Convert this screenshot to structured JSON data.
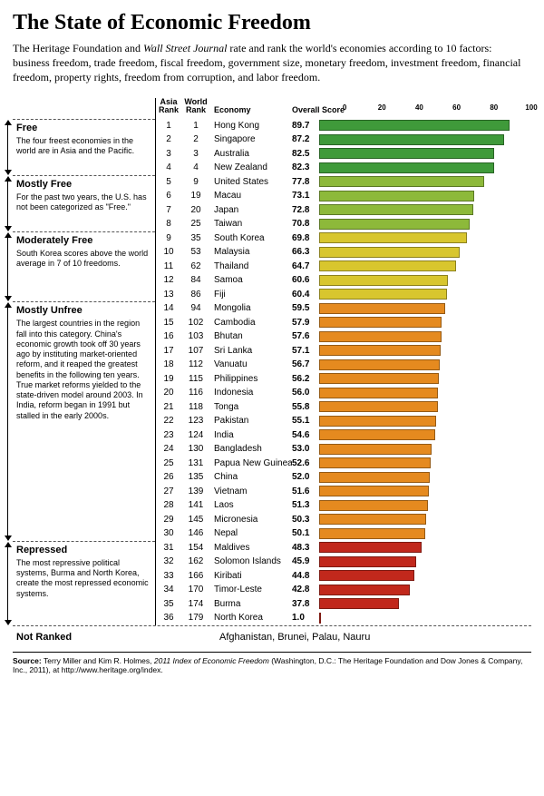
{
  "title": "The State of Economic Freedom",
  "intro_a": "The Heritage Foundation and ",
  "intro_em": "Wall Street Journal",
  "intro_b": " rate and rank the world's economies according to 10 factors: business freedom, trade freedom, fiscal freedom, government size, monetary freedom, investment freedom, financial freedom, property rights, freedom from corruption, and labor freedom.",
  "headers": {
    "asia": "Asia Rank",
    "world": "World Rank",
    "economy": "Economy",
    "score": "Overall Score"
  },
  "axis": {
    "min": 0,
    "max": 100,
    "ticks": [
      0,
      20,
      40,
      60,
      80,
      100
    ]
  },
  "categories": [
    {
      "label": "Free",
      "desc": "The four freest economies in the world are in Asia and the Pacific.",
      "rows": 4
    },
    {
      "label": "Mostly Free",
      "desc": "For the past two years, the U.S. has not been categorized as \"Free.\"",
      "rows": 4
    },
    {
      "label": "Moderately Free",
      "desc": "South Korea scores above the world average in 7 of 10 freedoms.",
      "rows": 5
    },
    {
      "label": "Mostly Unfree",
      "desc": "The largest countries in the region fall into this category. China's economic growth took off 30 years ago by instituting market-oriented reform, and it reaped the greatest benefits in the following ten years. True market reforms yielded to the state-driven model around 2003. In India, reform began in 1991 but stalled in the early 2000s.",
      "rows": 17
    },
    {
      "label": "Repressed",
      "desc": "The most repressive political systems, Burma and North Korea, create the most repressed economic systems.",
      "rows": 6
    }
  ],
  "colors": {
    "free": "#3f9a3a",
    "mostly_free": "#8db93a",
    "moderately_free": "#d8c62e",
    "mostly_unfree": "#e58a1f",
    "repressed": "#c1281c"
  },
  "rows": [
    {
      "asia": 1,
      "world": 1,
      "economy": "Hong Kong",
      "score": 89.7,
      "cat": "free"
    },
    {
      "asia": 2,
      "world": 2,
      "economy": "Singapore",
      "score": 87.2,
      "cat": "free"
    },
    {
      "asia": 3,
      "world": 3,
      "economy": "Australia",
      "score": 82.5,
      "cat": "free"
    },
    {
      "asia": 4,
      "world": 4,
      "economy": "New Zealand",
      "score": 82.3,
      "cat": "free"
    },
    {
      "asia": 5,
      "world": 9,
      "economy": "United States",
      "score": 77.8,
      "cat": "mostly_free"
    },
    {
      "asia": 6,
      "world": 19,
      "economy": "Macau",
      "score": 73.1,
      "cat": "mostly_free"
    },
    {
      "asia": 7,
      "world": 20,
      "economy": "Japan",
      "score": 72.8,
      "cat": "mostly_free"
    },
    {
      "asia": 8,
      "world": 25,
      "economy": "Taiwan",
      "score": 70.8,
      "cat": "mostly_free"
    },
    {
      "asia": 9,
      "world": 35,
      "economy": "South Korea",
      "score": 69.8,
      "cat": "moderately_free"
    },
    {
      "asia": 10,
      "world": 53,
      "economy": "Malaysia",
      "score": 66.3,
      "cat": "moderately_free"
    },
    {
      "asia": 11,
      "world": 62,
      "economy": "Thailand",
      "score": 64.7,
      "cat": "moderately_free"
    },
    {
      "asia": 12,
      "world": 84,
      "economy": "Samoa",
      "score": 60.6,
      "cat": "moderately_free"
    },
    {
      "asia": 13,
      "world": 86,
      "economy": "Fiji",
      "score": 60.4,
      "cat": "moderately_free"
    },
    {
      "asia": 14,
      "world": 94,
      "economy": "Mongolia",
      "score": 59.5,
      "cat": "mostly_unfree"
    },
    {
      "asia": 15,
      "world": 102,
      "economy": "Cambodia",
      "score": 57.9,
      "cat": "mostly_unfree"
    },
    {
      "asia": 16,
      "world": 103,
      "economy": "Bhutan",
      "score": 57.6,
      "cat": "mostly_unfree"
    },
    {
      "asia": 17,
      "world": 107,
      "economy": "Sri Lanka",
      "score": 57.1,
      "cat": "mostly_unfree"
    },
    {
      "asia": 18,
      "world": 112,
      "economy": "Vanuatu",
      "score": 56.7,
      "cat": "mostly_unfree"
    },
    {
      "asia": 19,
      "world": 115,
      "economy": "Philippines",
      "score": 56.2,
      "cat": "mostly_unfree"
    },
    {
      "asia": 20,
      "world": 116,
      "economy": "Indonesia",
      "score": 56.0,
      "cat": "mostly_unfree"
    },
    {
      "asia": 21,
      "world": 118,
      "economy": "Tonga",
      "score": 55.8,
      "cat": "mostly_unfree"
    },
    {
      "asia": 22,
      "world": 123,
      "economy": "Pakistan",
      "score": 55.1,
      "cat": "mostly_unfree"
    },
    {
      "asia": 23,
      "world": 124,
      "economy": "India",
      "score": 54.6,
      "cat": "mostly_unfree"
    },
    {
      "asia": 24,
      "world": 130,
      "economy": "Bangladesh",
      "score": 53.0,
      "cat": "mostly_unfree"
    },
    {
      "asia": 25,
      "world": 131,
      "economy": "Papua New Guinea",
      "score": 52.6,
      "cat": "mostly_unfree"
    },
    {
      "asia": 26,
      "world": 135,
      "economy": "China",
      "score": 52.0,
      "cat": "mostly_unfree"
    },
    {
      "asia": 27,
      "world": 139,
      "economy": "Vietnam",
      "score": 51.6,
      "cat": "mostly_unfree"
    },
    {
      "asia": 28,
      "world": 141,
      "economy": "Laos",
      "score": 51.3,
      "cat": "mostly_unfree"
    },
    {
      "asia": 29,
      "world": 145,
      "economy": "Micronesia",
      "score": 50.3,
      "cat": "mostly_unfree"
    },
    {
      "asia": 30,
      "world": 146,
      "economy": "Nepal",
      "score": 50.1,
      "cat": "mostly_unfree"
    },
    {
      "asia": 31,
      "world": 154,
      "economy": "Maldives",
      "score": 48.3,
      "cat": "repressed"
    },
    {
      "asia": 32,
      "world": 162,
      "economy": "Solomon Islands",
      "score": 45.9,
      "cat": "repressed"
    },
    {
      "asia": 33,
      "world": 166,
      "economy": "Kiribati",
      "score": 44.8,
      "cat": "repressed"
    },
    {
      "asia": 34,
      "world": 170,
      "economy": "Timor-Leste",
      "score": 42.8,
      "cat": "repressed"
    },
    {
      "asia": 35,
      "world": 174,
      "economy": "Burma",
      "score": 37.8,
      "cat": "repressed"
    },
    {
      "asia": 36,
      "world": 179,
      "economy": "North Korea",
      "score": 1.0,
      "cat": "repressed"
    }
  ],
  "not_ranked": {
    "label": "Not Ranked",
    "list": "Afghanistan, Brunei, Palau, Nauru"
  },
  "source_a": "Source: ",
  "source_b": "Terry Miller and Kim R. Holmes, ",
  "source_em": "2011 Index of Economic Freedom",
  "source_c": " (Washington, D.C.: The Heritage Foundation and Dow Jones & Company, Inc., 2011), at http://www.heritage.org/index."
}
